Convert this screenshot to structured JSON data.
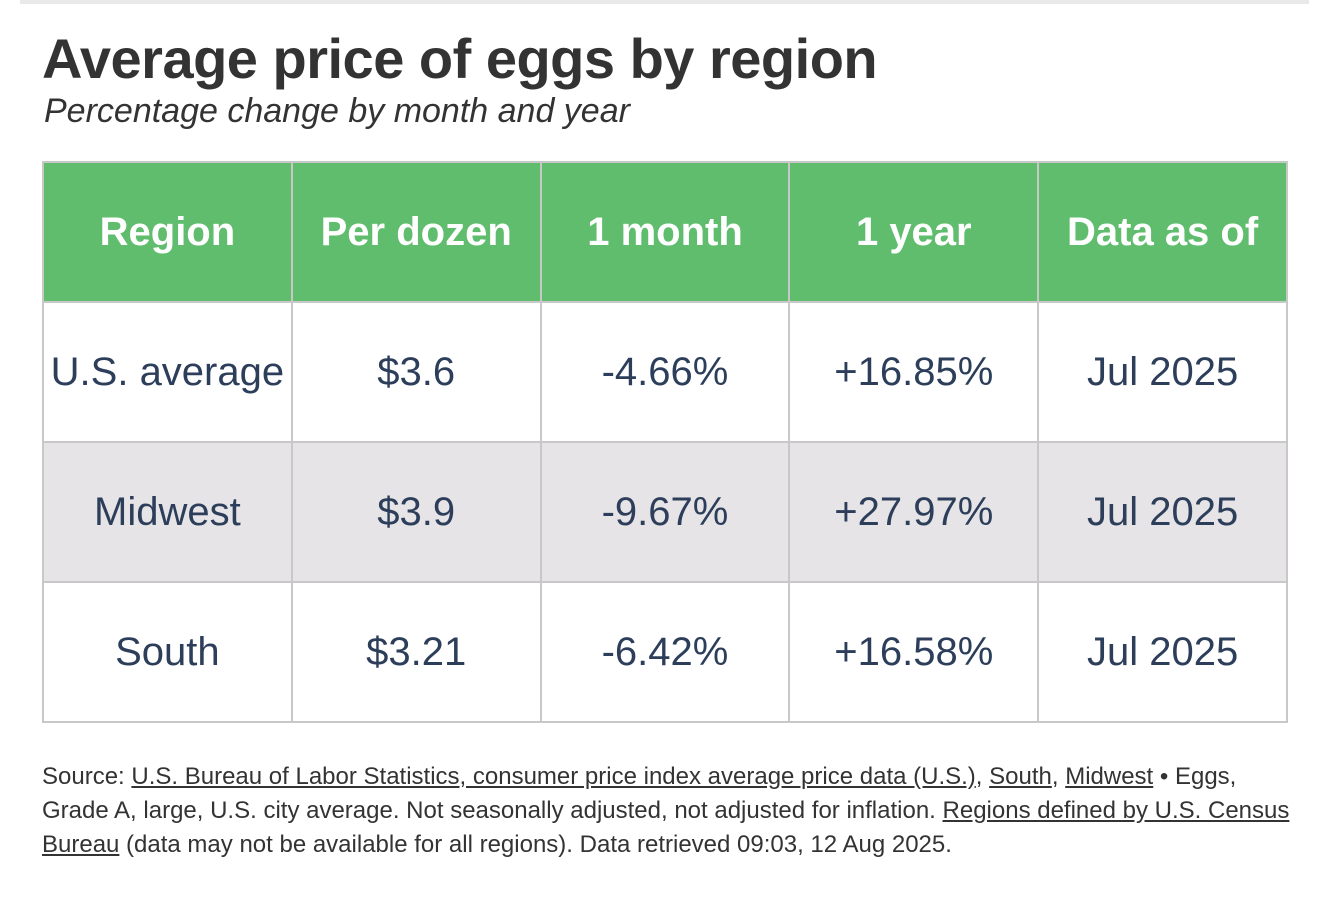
{
  "title": "Average price of eggs by region",
  "subtitle": "Percentage change by month and year",
  "chart_data": {
    "type": "table",
    "columns": [
      "Region",
      "Per dozen",
      "1 month",
      "1 year",
      "Data as of"
    ],
    "rows": [
      [
        "U.S. average",
        "$3.6",
        "-4.66%",
        "+16.85%",
        "Jul 2025"
      ],
      [
        "Midwest",
        "$3.9",
        "-9.67%",
        "+27.97%",
        "Jul 2025"
      ],
      [
        "South",
        "$3.21",
        "-6.42%",
        "+16.58%",
        "Jul 2025"
      ]
    ]
  },
  "colors": {
    "header_bg": "#5fbd6d",
    "header_text": "#ffffff",
    "cell_text": "#2c3e5a",
    "shaded_row": "#e6e4e6",
    "border": "#c8c8c8"
  },
  "source": {
    "prefix": "Source: ",
    "link_bls": "U.S. Bureau of Labor Statistics, consumer price index average price data (U.S.)",
    "sep1": ", ",
    "link_south": "South",
    "sep2": ", ",
    "link_midwest": "Midwest",
    "series_text": " • Eggs, Grade A, large, U.S. city average. Not seasonally adjusted, not adjusted for inflation. ",
    "link_regions": "Regions defined by U.S. Census Bureau",
    "suffix": " (data may not be available for all regions). Data retrieved 09:03, 12 Aug 2025."
  }
}
